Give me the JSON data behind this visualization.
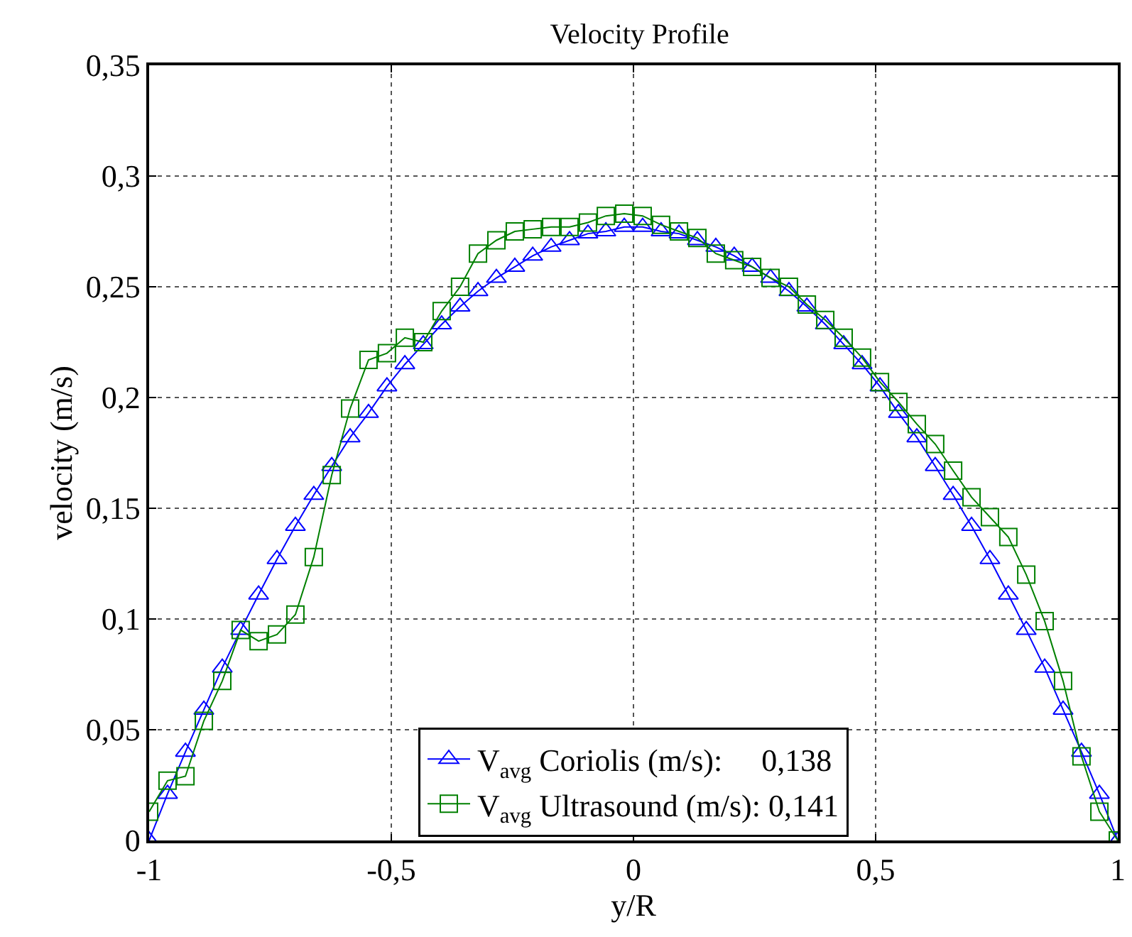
{
  "chart_data": {
    "type": "line",
    "title": "Velocity Profile",
    "xlabel": "y/R",
    "ylabel": "velocity (m/s)",
    "x": [
      -1,
      -0.962,
      -0.925,
      -0.887,
      -0.849,
      -0.811,
      -0.774,
      -0.736,
      -0.698,
      -0.66,
      -0.623,
      -0.585,
      -0.547,
      -0.509,
      -0.472,
      -0.434,
      -0.396,
      -0.358,
      -0.321,
      -0.283,
      -0.245,
      -0.208,
      -0.17,
      -0.132,
      -0.094,
      -0.057,
      -0.019,
      0.019,
      0.057,
      0.094,
      0.132,
      0.17,
      0.208,
      0.245,
      0.283,
      0.321,
      0.358,
      0.396,
      0.434,
      0.472,
      0.509,
      0.547,
      0.585,
      0.623,
      0.66,
      0.698,
      0.736,
      0.774,
      0.811,
      0.849,
      0.887,
      0.925,
      0.962,
      1
    ],
    "series": [
      {
        "name": "V$_{avg}$ Coriolis (m/s):     0,138",
        "color": "#0000ff",
        "marker": "triangle",
        "values": [
          0,
          0.021,
          0.04,
          0.059,
          0.078,
          0.095,
          0.111,
          0.127,
          0.142,
          0.156,
          0.169,
          0.182,
          0.193,
          0.205,
          0.215,
          0.224,
          0.233,
          0.241,
          0.248,
          0.254,
          0.259,
          0.264,
          0.268,
          0.271,
          0.274,
          0.275,
          0.277,
          0.277,
          0.275,
          0.274,
          0.271,
          0.268,
          0.264,
          0.259,
          0.254,
          0.248,
          0.241,
          0.233,
          0.224,
          0.215,
          0.205,
          0.193,
          0.182,
          0.169,
          0.156,
          0.142,
          0.127,
          0.111,
          0.095,
          0.078,
          0.059,
          0.04,
          0.021,
          0
        ]
      },
      {
        "name": "V$_{avg}$ Ultrasound (m/s): 0,141",
        "color": "#008000",
        "marker": "square",
        "values": [
          0.013,
          0.027,
          0.029,
          0.054,
          0.072,
          0.095,
          0.09,
          0.093,
          0.102,
          0.128,
          0.165,
          0.195,
          0.217,
          0.22,
          0.227,
          0.225,
          0.239,
          0.25,
          0.265,
          0.271,
          0.275,
          0.276,
          0.277,
          0.277,
          0.279,
          0.282,
          0.283,
          0.282,
          0.278,
          0.275,
          0.272,
          0.265,
          0.262,
          0.259,
          0.254,
          0.25,
          0.242,
          0.235,
          0.227,
          0.218,
          0.207,
          0.198,
          0.188,
          0.179,
          0.167,
          0.155,
          0.146,
          0.137,
          0.12,
          0.099,
          0.072,
          0.038,
          0.013,
          0
        ]
      }
    ],
    "xlim": [
      -1,
      1
    ],
    "xticks": [
      -1,
      {
        "value": -0.5,
        "label": "-0,5"
      },
      0,
      {
        "value": 0.5,
        "label": "0,5"
      },
      1
    ],
    "ylim": [
      0,
      0.35
    ],
    "yticks": [
      0,
      {
        "value": 0.05,
        "label": "0,05"
      },
      {
        "value": 0.1,
        "label": "0,1"
      },
      {
        "value": 0.15,
        "label": "0,15"
      },
      {
        "value": 0.2,
        "label": "0,2"
      },
      {
        "value": 0.25,
        "label": "0,25"
      },
      {
        "value": 0.3,
        "label": "0,3"
      },
      {
        "value": 0.35,
        "label": "0,35"
      }
    ],
    "grid": true,
    "legend": "bottom",
    "line_style": "solid"
  }
}
